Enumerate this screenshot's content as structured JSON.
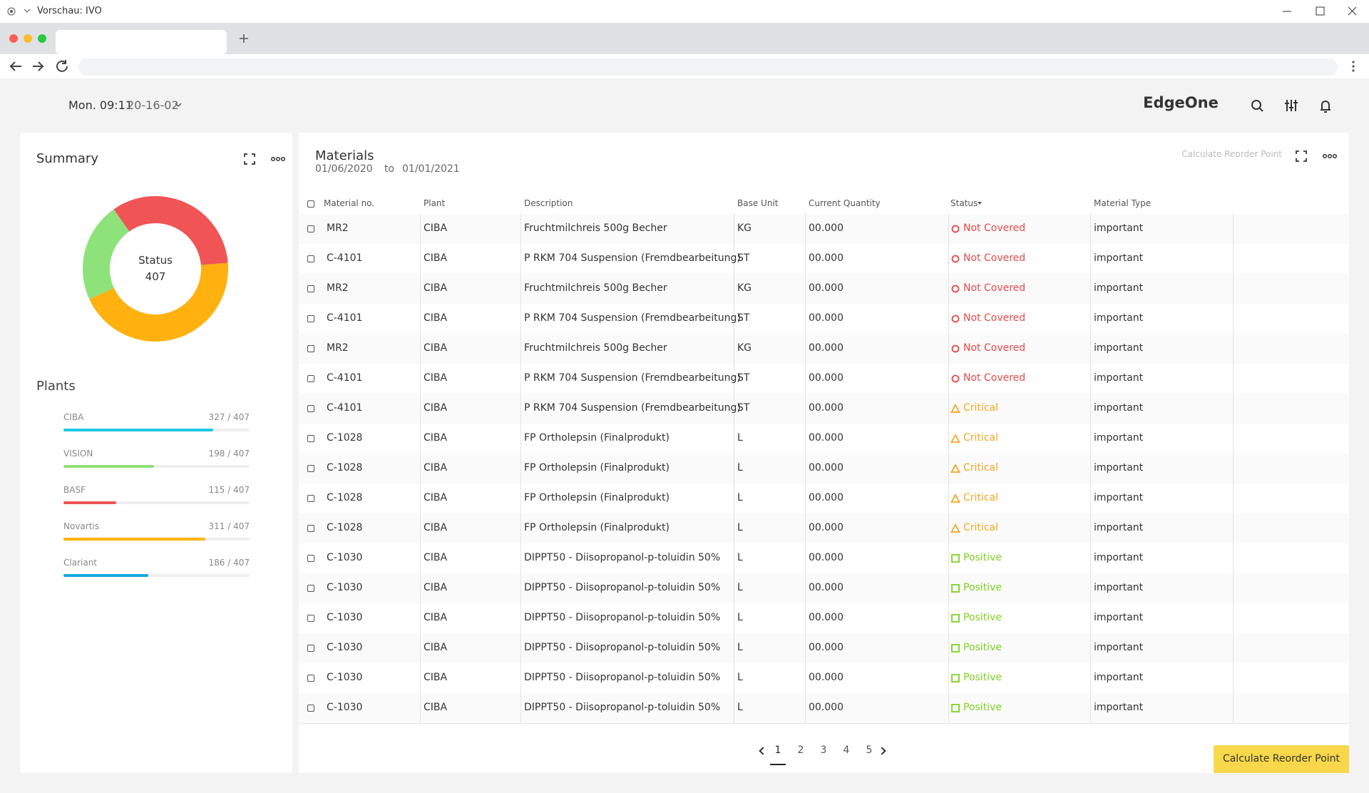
{
  "window": {
    "title": "Vorschau: IVO"
  },
  "header": {
    "time": "Mon. 09:11",
    "date": "20-16-02",
    "brand": "EdgeOne"
  },
  "summary": {
    "title": "Summary",
    "donut_label": "Status",
    "donut_total": 407,
    "segments": [
      {
        "color": "#f05454",
        "value": 136
      },
      {
        "color": "#ffb20f",
        "value": 181
      },
      {
        "color": "#8ee27a",
        "value": 90
      }
    ],
    "plants_title": "Plants",
    "plants": [
      {
        "name": "CIBA",
        "label": "327 / 407",
        "value": 327,
        "total": 407,
        "color": "#1fc8e3"
      },
      {
        "name": "VISION",
        "label": "198 / 407",
        "value": 198,
        "total": 407,
        "color": "#8de07a"
      },
      {
        "name": "BASF",
        "label": "115 / 407",
        "value": 115,
        "total": 407,
        "color": "#f05454"
      },
      {
        "name": "Novartis",
        "label": "311 / 407",
        "value": 311,
        "total": 407,
        "color": "#ffb20f"
      },
      {
        "name": "Clariant",
        "label": "186 / 407",
        "value": 186,
        "total": 407,
        "color": "#17a8e0"
      }
    ]
  },
  "materials": {
    "title": "Materials",
    "date_from": "01/06/2020",
    "date_to_label": "to",
    "date_to": "01/01/2021",
    "action": "Calculate Reorder Point",
    "columns": [
      "Material no.",
      "Plant",
      "Description",
      "Base Unit",
      "Current Quantity",
      "Status",
      "Material Type"
    ],
    "rows": [
      {
        "cells": [
          "MR2",
          "CIBA",
          "Fruchtmilchreis 500g Becher",
          "KG",
          "00.000",
          "Not Covered",
          "important"
        ],
        "status_color": "#e84a4a",
        "status_icon": "circle"
      },
      {
        "cells": [
          "C-4101",
          "CIBA",
          "P RKM 704 Suspension (Fremdbearbeitung)",
          "ST",
          "00.000",
          "Not Covered",
          "important"
        ],
        "status_color": "#e84a4a",
        "status_icon": "circle"
      },
      {
        "cells": [
          "MR2",
          "CIBA",
          "Fruchtmilchreis 500g Becher",
          "KG",
          "00.000",
          "Not Covered",
          "important"
        ],
        "status_color": "#e84a4a",
        "status_icon": "circle"
      },
      {
        "cells": [
          "C-4101",
          "CIBA",
          "P RKM 704 Suspension (Fremdbearbeitung)",
          "ST",
          "00.000",
          "Not Covered",
          "important"
        ],
        "status_color": "#e84a4a",
        "status_icon": "circle"
      },
      {
        "cells": [
          "MR2",
          "CIBA",
          "Fruchtmilchreis 500g Becher",
          "KG",
          "00.000",
          "Not Covered",
          "important"
        ],
        "status_color": "#e84a4a",
        "status_icon": "circle"
      },
      {
        "cells": [
          "C-4101",
          "CIBA",
          "P RKM 704 Suspension (Fremdbearbeitung)",
          "ST",
          "00.000",
          "Not Covered",
          "important"
        ],
        "status_color": "#e84a4a",
        "status_icon": "circle"
      },
      {
        "cells": [
          "C-4101",
          "CIBA",
          "P RKM 704 Suspension (Fremdbearbeitung)",
          "ST",
          "00.000",
          "Critical",
          "important"
        ],
        "status_color": "#f5a623",
        "status_icon": "triangle"
      },
      {
        "cells": [
          "C-1028",
          "CIBA",
          "FP Ortholepsin (Finalprodukt)",
          "L",
          "00.000",
          "Critical",
          "important"
        ],
        "status_color": "#f5a623",
        "status_icon": "triangle"
      },
      {
        "cells": [
          "C-1028",
          "CIBA",
          "FP Ortholepsin (Finalprodukt)",
          "L",
          "00.000",
          "Critical",
          "important"
        ],
        "status_color": "#f5a623",
        "status_icon": "triangle"
      },
      {
        "cells": [
          "C-1028",
          "CIBA",
          "FP Ortholepsin (Finalprodukt)",
          "L",
          "00.000",
          "Critical",
          "important"
        ],
        "status_color": "#f5a623",
        "status_icon": "triangle"
      },
      {
        "cells": [
          "C-1028",
          "CIBA",
          "FP Ortholepsin (Finalprodukt)",
          "L",
          "00.000",
          "Critical",
          "important"
        ],
        "status_color": "#f5a623",
        "status_icon": "triangle"
      },
      {
        "cells": [
          "C-1030",
          "CIBA",
          "DIPPT50 - Diisopropanol-p-toluidin 50%",
          "L",
          "00.000",
          "Positive",
          "important"
        ],
        "status_color": "#7ed321",
        "status_icon": "square"
      },
      {
        "cells": [
          "C-1030",
          "CIBA",
          "DIPPT50 - Diisopropanol-p-toluidin 50%",
          "L",
          "00.000",
          "Positive",
          "important"
        ],
        "status_color": "#7ed321",
        "status_icon": "square"
      },
      {
        "cells": [
          "C-1030",
          "CIBA",
          "DIPPT50 - Diisopropanol-p-toluidin 50%",
          "L",
          "00.000",
          "Positive",
          "important"
        ],
        "status_color": "#7ed321",
        "status_icon": "square"
      },
      {
        "cells": [
          "C-1030",
          "CIBA",
          "DIPPT50 - Diisopropanol-p-toluidin 50%",
          "L",
          "00.000",
          "Positive",
          "important"
        ],
        "status_color": "#7ed321",
        "status_icon": "square"
      },
      {
        "cells": [
          "C-1030",
          "CIBA",
          "DIPPT50 - Diisopropanol-p-toluidin 50%",
          "L",
          "00.000",
          "Positive",
          "important"
        ],
        "status_color": "#7ed321",
        "status_icon": "square"
      },
      {
        "cells": [
          "C-1030",
          "CIBA",
          "DIPPT50 - Diisopropanol-p-toluidin 50%",
          "L",
          "00.000",
          "Positive",
          "important"
        ],
        "status_color": "#7ed321",
        "status_icon": "square"
      }
    ],
    "pages": [
      1,
      2,
      3,
      4,
      5
    ],
    "current_page": 1,
    "button": "Calculate Reorder Point"
  }
}
